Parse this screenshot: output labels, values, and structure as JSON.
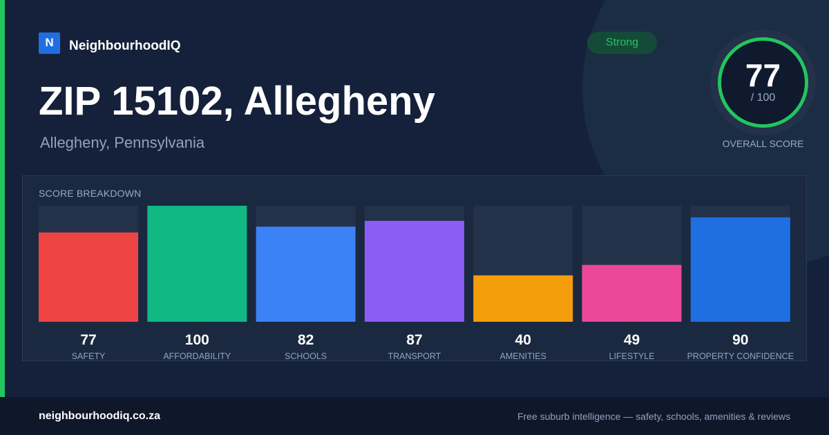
{
  "brand": {
    "logo_letter": "N",
    "name": "NeighbourhoodIQ"
  },
  "header": {
    "title": "ZIP 15102, Allegheny",
    "subtitle": "Allegheny, Pennsylvania",
    "badge": "Strong"
  },
  "overall": {
    "score": "77",
    "max_label": "/ 100",
    "caption": "OVERALL SCORE",
    "fraction": 0.77
  },
  "breakdown": {
    "title": "SCORE BREAKDOWN"
  },
  "chart_data": {
    "type": "bar",
    "title": "SCORE BREAKDOWN",
    "categories": [
      "SAFETY",
      "AFFORDABILITY",
      "SCHOOLS",
      "TRANSPORT",
      "AMENITIES",
      "LIFESTYLE",
      "PROPERTY CONFIDENCE"
    ],
    "values": [
      77,
      100,
      82,
      87,
      40,
      49,
      90
    ],
    "colors": [
      "#ef4444",
      "#10b981",
      "#3b82f6",
      "#8b5cf6",
      "#f59e0b",
      "#ec4899",
      "#1f6fe0"
    ],
    "ylim": [
      0,
      100
    ],
    "grid": false,
    "legend": "none"
  },
  "footer": {
    "site": "neighbourhoodiq.co.za",
    "tagline": "Free suburb intelligence — safety, schools, amenities & reviews"
  },
  "theme": {
    "background": "#15213a",
    "accent": "#22c55e",
    "track": "#233149"
  }
}
